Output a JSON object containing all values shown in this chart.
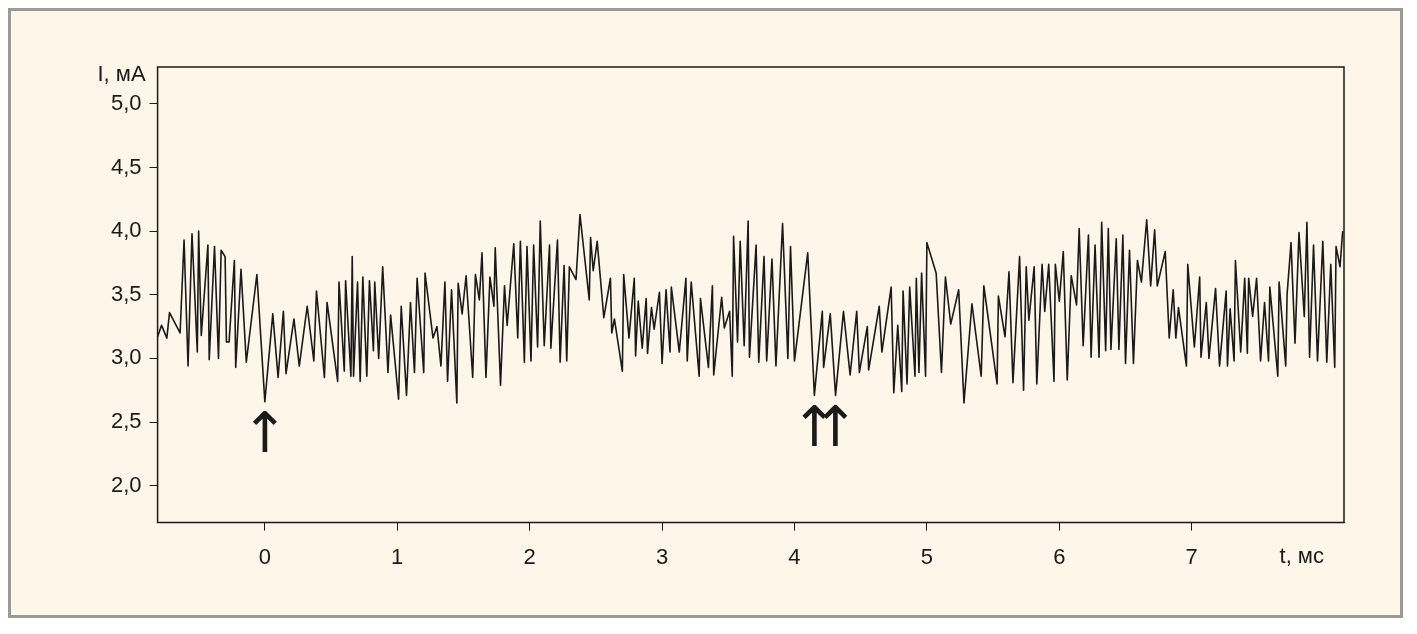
{
  "chart_data": {
    "type": "line",
    "xlabel": "t, мс",
    "ylabel": "I, мА",
    "xlim": [
      -0.81,
      8.15
    ],
    "ylim": [
      1.71,
      5.29
    ],
    "xticks": [
      0,
      1,
      2,
      3,
      4,
      5,
      6,
      7
    ],
    "yticks": [
      {
        "value": 2.0,
        "label": "2,0"
      },
      {
        "value": 2.5,
        "label": "2,5"
      },
      {
        "value": 3.0,
        "label": "3,0"
      },
      {
        "value": 3.5,
        "label": "3,5"
      },
      {
        "value": 4.0,
        "label": "4,0"
      },
      {
        "value": 4.5,
        "label": "4,5"
      },
      {
        "value": 5.0,
        "label": "5,0"
      }
    ],
    "grid": false,
    "legend": false,
    "marker": "none",
    "line_style": "solid",
    "annotations": [
      {
        "text": "↑",
        "x": 0,
        "y": 2.66
      },
      {
        "text": "↑",
        "x": 4.15,
        "y": 2.71
      },
      {
        "text": "↑",
        "x": 4.31,
        "y": 2.71
      }
    ],
    "series": [
      {
        "color": "#1a1a1a",
        "x": [
          -0.81,
          -0.78,
          -0.74,
          -0.72,
          -0.64,
          -0.61,
          -0.58,
          -0.55,
          -0.51,
          -0.5,
          -0.48,
          -0.43,
          -0.42,
          -0.38,
          -0.35,
          -0.33,
          -0.3,
          -0.29,
          -0.27,
          -0.23,
          -0.22,
          -0.18,
          -0.14,
          -0.06,
          0,
          0.06,
          0.1,
          0.14,
          0.16,
          0.22,
          0.26,
          0.32,
          0.37,
          0.39,
          0.45,
          0.47,
          0.55,
          0.56,
          0.6,
          0.61,
          0.65,
          0.66,
          0.67,
          0.7,
          0.72,
          0.74,
          0.77,
          0.79,
          0.82,
          0.83,
          0.86,
          0.89,
          0.93,
          0.95,
          1.01,
          1.03,
          1.07,
          1.1,
          1.13,
          1.15,
          1.2,
          1.21,
          1.27,
          1.3,
          1.33,
          1.36,
          1.38,
          1.41,
          1.45,
          1.46,
          1.49,
          1.52,
          1.57,
          1.59,
          1.62,
          1.64,
          1.67,
          1.7,
          1.73,
          1.74,
          1.78,
          1.81,
          1.83,
          1.88,
          1.91,
          1.93,
          1.96,
          1.98,
          2.01,
          2.03,
          2.06,
          2.08,
          2.11,
          2.15,
          2.16,
          2.21,
          2.23,
          2.26,
          2.28,
          2.3,
          2.35,
          2.38,
          2.45,
          2.46,
          2.48,
          2.51,
          2.56,
          2.61,
          2.62,
          2.64,
          2.7,
          2.71,
          2.75,
          2.79,
          2.8,
          2.82,
          2.85,
          2.88,
          2.89,
          2.92,
          2.94,
          2.98,
          3.0,
          3.03,
          3.06,
          3.07,
          3.13,
          3.18,
          3.19,
          3.22,
          3.28,
          3.29,
          3.35,
          3.38,
          3.39,
          3.45,
          3.47,
          3.51,
          3.53,
          3.54,
          3.57,
          3.59,
          3.62,
          3.65,
          3.66,
          3.71,
          3.73,
          3.77,
          3.79,
          3.83,
          3.86,
          3.91,
          3.95,
          3.97,
          4.0,
          4.1,
          4.15,
          4.21,
          4.22,
          4.27,
          4.31,
          4.37,
          4.42,
          4.47,
          4.49,
          4.55,
          4.56,
          4.64,
          4.66,
          4.73,
          4.75,
          4.78,
          4.81,
          4.82,
          4.85,
          4.87,
          4.91,
          4.92,
          4.94,
          4.96,
          4.99,
          5.0,
          5.07,
          5.11,
          5.14,
          5.18,
          5.24,
          5.28,
          5.34,
          5.41,
          5.43,
          5.53,
          5.54,
          5.59,
          5.62,
          5.65,
          5.7,
          5.73,
          5.75,
          5.77,
          5.81,
          5.83,
          5.87,
          5.89,
          5.92,
          5.96,
          5.97,
          6.0,
          6.03,
          6.06,
          6.09,
          6.13,
          6.15,
          6.18,
          6.22,
          6.24,
          6.27,
          6.3,
          6.32,
          6.35,
          6.37,
          6.39,
          6.43,
          6.45,
          6.48,
          6.5,
          6.53,
          6.56,
          6.59,
          6.62,
          6.66,
          6.69,
          6.72,
          6.74,
          6.8,
          6.83,
          6.86,
          6.88,
          6.9,
          6.96,
          6.97,
          7.02,
          7.06,
          7.07,
          7.11,
          7.13,
          7.18,
          7.21,
          7.26,
          7.27,
          7.29,
          7.32,
          7.33,
          7.37,
          7.4,
          7.42,
          7.43,
          7.46,
          7.49,
          7.52,
          7.55,
          7.58,
          7.59,
          7.65,
          7.66,
          7.71,
          7.72,
          7.75,
          7.78,
          7.81,
          7.85,
          7.87,
          7.89,
          7.92,
          7.95,
          7.99,
          8.02,
          8.05,
          8.08,
          8.09,
          8.12,
          8.14
        ],
        "values": [
          3.17,
          3.26,
          3.16,
          3.36,
          3.2,
          3.93,
          2.94,
          3.98,
          3.05,
          4.0,
          3.18,
          3.89,
          2.99,
          3.88,
          3.0,
          3.85,
          3.8,
          3.13,
          3.13,
          3.77,
          2.93,
          3.7,
          2.97,
          3.66,
          2.66,
          3.35,
          2.85,
          3.37,
          2.88,
          3.31,
          2.94,
          3.41,
          2.98,
          3.53,
          2.85,
          3.44,
          2.82,
          3.6,
          2.9,
          3.61,
          2.86,
          3.8,
          2.86,
          3.6,
          2.82,
          3.64,
          2.86,
          3.61,
          3.06,
          3.6,
          3.0,
          3.72,
          2.89,
          3.34,
          2.68,
          3.41,
          2.71,
          3.44,
          2.89,
          3.63,
          2.89,
          3.67,
          3.16,
          3.25,
          2.94,
          3.6,
          2.82,
          3.54,
          2.65,
          3.59,
          3.35,
          3.65,
          2.85,
          3.66,
          3.46,
          3.83,
          2.85,
          3.64,
          3.41,
          3.87,
          2.79,
          3.57,
          3.26,
          3.9,
          3.16,
          3.92,
          2.97,
          3.88,
          2.98,
          3.89,
          3.09,
          4.08,
          3.1,
          3.89,
          3.08,
          3.93,
          2.97,
          3.73,
          2.98,
          3.72,
          3.62,
          4.13,
          3.46,
          3.95,
          3.69,
          3.92,
          3.32,
          3.63,
          3.2,
          3.31,
          2.9,
          3.66,
          3.16,
          3.63,
          3.02,
          3.45,
          3.08,
          3.47,
          3.04,
          3.4,
          3.23,
          3.52,
          2.96,
          3.54,
          3.05,
          3.56,
          3.05,
          3.63,
          2.98,
          3.6,
          2.86,
          3.47,
          2.93,
          3.57,
          2.87,
          3.48,
          3.24,
          3.37,
          2.86,
          3.96,
          3.13,
          3.92,
          3.1,
          4.08,
          3.01,
          3.89,
          2.97,
          3.8,
          2.98,
          3.78,
          2.94,
          4.06,
          3.0,
          3.88,
          2.98,
          3.83,
          2.71,
          3.37,
          2.93,
          3.35,
          2.71,
          3.37,
          2.87,
          3.37,
          2.89,
          3.25,
          2.91,
          3.41,
          3.05,
          3.56,
          2.73,
          3.26,
          2.74,
          3.53,
          2.8,
          3.56,
          2.86,
          3.63,
          2.89,
          3.67,
          2.86,
          3.91,
          3.67,
          2.89,
          3.64,
          3.27,
          3.54,
          2.65,
          3.43,
          2.86,
          3.57,
          2.8,
          3.49,
          3.17,
          3.68,
          2.81,
          3.8,
          2.75,
          3.72,
          3.3,
          3.72,
          2.8,
          3.74,
          3.37,
          3.74,
          2.82,
          3.74,
          3.45,
          3.84,
          2.83,
          3.65,
          3.42,
          4.02,
          3.1,
          3.97,
          3.01,
          3.89,
          3.01,
          4.07,
          3.06,
          4.02,
          3.07,
          3.94,
          3.07,
          3.97,
          2.96,
          3.85,
          2.96,
          3.77,
          3.6,
          4.09,
          3.57,
          4.01,
          3.57,
          3.84,
          3.16,
          3.54,
          3.16,
          3.4,
          2.94,
          3.74,
          3.09,
          3.64,
          3.01,
          3.44,
          3.0,
          3.55,
          2.94,
          3.53,
          2.94,
          3.39,
          2.98,
          3.77,
          3.05,
          3.63,
          3.04,
          3.63,
          3.33,
          3.63,
          2.98,
          3.44,
          2.98,
          3.56,
          2.86,
          3.6,
          2.94,
          3.5,
          3.91,
          3.12,
          3.99,
          3.33,
          4.07,
          3.01,
          3.89,
          2.98,
          3.92,
          2.97,
          3.74,
          2.93,
          3.88,
          3.72,
          4.0
        ]
      }
    ]
  }
}
